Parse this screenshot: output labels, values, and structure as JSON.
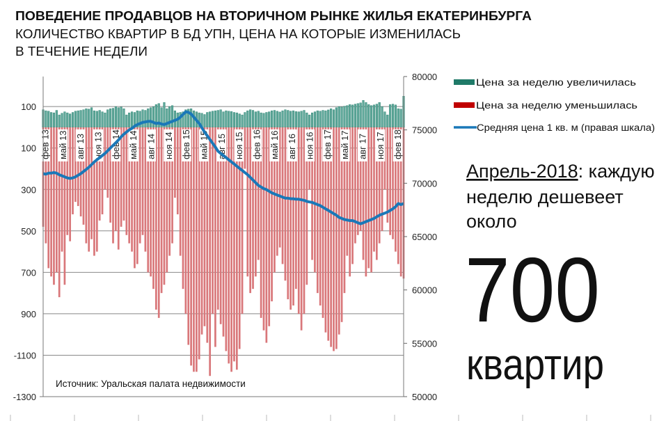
{
  "header": {
    "title": "ПОВЕДЕНИЕ ПРОДАВЦОВ НА ВТОРИЧНОМ РЫНКЕ ЖИЛЬЯ ЕКАТЕРИНБУРГА",
    "subtitle_line1": "КОЛИЧЕСТВО КВАРТИР В БД УПН, ЦЕНА НА КОТОРЫЕ ИЗМЕНИЛАСЬ",
    "subtitle_line2": "В ТЕЧЕНИЕ НЕДЕЛИ"
  },
  "legend": {
    "increase": "Цена за неделю увеличилась",
    "decrease": "Цена за неделю уменьшилась",
    "price": "Средняя цена 1 кв. м (правая шкала)"
  },
  "callout": {
    "highlight": "Апрель-2018",
    "line1_rest": ": каждую",
    "line2": "неделю дешевеет",
    "line3": "около",
    "number": "700",
    "unit": "квартир"
  },
  "source": "Источник: Уральская палата недвижимости",
  "colors": {
    "increase": "#5fa89a",
    "increase_dark": "#1f7a68",
    "decrease": "#d9777a",
    "price": "#1a78b8",
    "grid": "#888888"
  },
  "chart_data": {
    "type": "bar+line",
    "frequency": "biweekly approximation of weekly bars",
    "x_tick_labels": [
      "фев 13",
      "май 13",
      "авг 13",
      "ноя 13",
      "фев 14",
      "май 14",
      "авг 14",
      "ноя 14",
      "фев 15",
      "май 15",
      "авг 15",
      "ноя 15",
      "фев 16",
      "май 16",
      "авг 16",
      "ноя 16",
      "фев 17",
      "май 17",
      "авг 17",
      "ноя 17",
      "фев 18"
    ],
    "left_axis": {
      "ylim": [
        -1300,
        245
      ],
      "tick_values": [
        100,
        -100,
        -300,
        -500,
        -700,
        -900,
        -1100,
        -1300
      ],
      "tick_labels": [
        "100",
        "100",
        "300",
        "500",
        "700",
        "900",
        "-1100",
        "-1300"
      ]
    },
    "right_axis": {
      "ylim": [
        50000,
        80000
      ],
      "tick_values": [
        80000,
        75000,
        70000,
        65000,
        60000,
        55000,
        50000
      ],
      "tick_labels": [
        "80000",
        "75000",
        "70000",
        "65000",
        "60000",
        "55000",
        "50000"
      ]
    },
    "grid": true,
    "legend_position": "right",
    "series": [
      {
        "name": "Цена за неделю увеличилась",
        "axis": "left",
        "kind": "bar",
        "values": [
          85,
          80,
          78,
          72,
          70,
          82,
          60,
          68,
          75,
          70,
          65,
          72,
          78,
          80,
          82,
          85,
          90,
          88,
          95,
          80,
          78,
          82,
          75,
          70,
          85,
          90,
          92,
          100,
          95,
          98,
          90,
          60,
          70,
          75,
          72,
          80,
          78,
          85,
          82,
          90,
          95,
          100,
          110,
          115,
          95,
          120,
          90,
          100,
          105,
          80,
          70,
          72,
          75,
          85,
          88,
          90,
          80,
          75,
          70,
          68,
          62,
          72,
          75,
          78,
          80,
          82,
          85,
          75,
          80,
          78,
          76,
          72,
          70,
          65,
          60,
          72,
          80,
          85,
          82,
          75,
          78,
          70,
          68,
          72,
          75,
          80,
          82,
          78,
          74,
          80,
          85,
          82,
          78,
          80,
          76,
          75,
          78,
          82,
          70,
          60,
          70,
          75,
          80,
          78,
          82,
          80,
          84,
          90,
          85,
          95,
          100,
          98,
          102,
          105,
          110,
          108,
          112,
          115,
          118,
          130,
          120,
          110,
          105,
          108,
          112,
          120,
          100,
          75,
          60,
          110,
          112,
          108,
          90,
          88,
          150
        ]
      },
      {
        "name": "Цена за неделю уменьшилась",
        "axis": "left",
        "kind": "bar",
        "values": [
          -480,
          -560,
          -680,
          -720,
          -760,
          -700,
          -820,
          -600,
          -760,
          -520,
          -550,
          -420,
          -360,
          -380,
          -430,
          -470,
          -560,
          -600,
          -540,
          -620,
          -600,
          -450,
          -420,
          -300,
          -340,
          -460,
          -560,
          -500,
          -590,
          -480,
          -450,
          -520,
          -560,
          -600,
          -680,
          -660,
          -560,
          -520,
          -600,
          -700,
          -720,
          -780,
          -880,
          -920,
          -800,
          -760,
          -700,
          -620,
          -560,
          -340,
          -420,
          -620,
          -780,
          -900,
          -1050,
          -1150,
          -1180,
          -1180,
          -1120,
          -1000,
          -960,
          -1040,
          -1200,
          -900,
          -1060,
          -880,
          -950,
          -1010,
          -1080,
          -1140,
          -1180,
          -1130,
          -1170,
          -1070,
          -900,
          -200,
          -720,
          -800,
          -780,
          -720,
          -640,
          -920,
          -980,
          -1040,
          -960,
          -840,
          -700,
          -620,
          -580,
          -660,
          -740,
          -830,
          -880,
          -860,
          -780,
          -900,
          -980,
          -900,
          -760,
          -300,
          -640,
          -700,
          -800,
          -860,
          -920,
          -990,
          -1030,
          -1060,
          -1080,
          -1070,
          -1000,
          -940,
          -800,
          -620,
          -720,
          -660,
          -560,
          -520,
          -500,
          -640,
          -720,
          -680,
          -700,
          -600,
          -640,
          -560,
          -500,
          -300,
          -460,
          -520,
          -540,
          -600,
          -660,
          -720,
          -730
        ]
      },
      {
        "name": "Средняя цена 1 кв. м (правая шкала)",
        "axis": "right",
        "kind": "line",
        "values": [
          70900,
          70850,
          70950,
          70950,
          71000,
          70950,
          70800,
          70700,
          70600,
          70500,
          70450,
          70500,
          70600,
          70750,
          70900,
          71100,
          71300,
          71500,
          71750,
          72000,
          72200,
          72400,
          72600,
          72800,
          73050,
          73300,
          73550,
          73800,
          74050,
          74350,
          74600,
          74800,
          75000,
          75150,
          75350,
          75500,
          75600,
          75700,
          75750,
          75800,
          75800,
          75700,
          75600,
          75650,
          75550,
          75500,
          75600,
          75700,
          75800,
          75900,
          76000,
          76200,
          76450,
          76700,
          76650,
          76500,
          76200,
          75900,
          75600,
          75200,
          74800,
          74450,
          74100,
          73750,
          73400,
          73000,
          72800,
          72600,
          72400,
          72200,
          72000,
          71800,
          71600,
          71400,
          71200,
          71000,
          70800,
          70550,
          70300,
          70050,
          69800,
          69650,
          69500,
          69400,
          69250,
          69100,
          69000,
          68900,
          68800,
          68700,
          68600,
          68600,
          68550,
          68550,
          68500,
          68500,
          68450,
          68400,
          68300,
          68250,
          68200,
          68100,
          68000,
          67900,
          67750,
          67600,
          67450,
          67300,
          67150,
          67000,
          66800,
          66700,
          66600,
          66550,
          66500,
          66500,
          66400,
          66300,
          66200,
          66300,
          66400,
          66500,
          66600,
          66700,
          66850,
          67000,
          67100,
          67200,
          67300,
          67450,
          67600,
          67800,
          68100,
          68000,
          68100
        ]
      }
    ]
  }
}
